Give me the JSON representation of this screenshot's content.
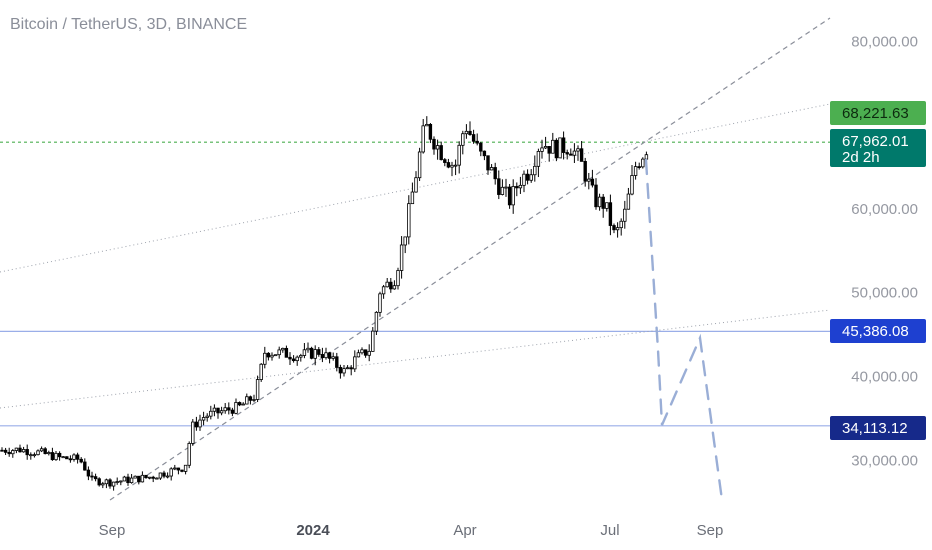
{
  "header": {
    "title": "Bitcoin / TetherUS, 3D, BINANCE"
  },
  "chart_data": {
    "type": "candlestick",
    "x_ticks": [
      "Sep",
      "2024",
      "Apr",
      "Jul",
      "Sep"
    ],
    "y_ticks": [
      "80,000.00",
      "60,000.00",
      "50,000.00",
      "40,000.00",
      "30,000.00"
    ],
    "ylim": [
      25500,
      83500
    ],
    "price_tags": [
      {
        "label": "68,221.63",
        "value": 68221.63,
        "bg": "#4caf50",
        "fg": "#0d2b0f"
      },
      {
        "label": "67,962.01",
        "sublabel": "2d 2h",
        "value": 67962.01,
        "bg": "#00796b",
        "fg": "#ffffff"
      },
      {
        "label": "45,386.08",
        "value": 45386.08,
        "bg": "#1e40d0",
        "fg": "#ffffff"
      },
      {
        "label": "34,113.12",
        "value": 34113.12,
        "bg": "#16298a",
        "fg": "#ffffff"
      }
    ],
    "horizontal_levels": [
      {
        "value": 45386.08,
        "color": "#9aaee8"
      },
      {
        "value": 34113.12,
        "color": "#9aaee8"
      },
      {
        "value": 67962.01,
        "color": "#4caf50",
        "dashed": true
      }
    ],
    "colors": {
      "up": "#ffffff",
      "down": "#000000",
      "outline": "#000000",
      "projection": "#9aaed6"
    }
  }
}
